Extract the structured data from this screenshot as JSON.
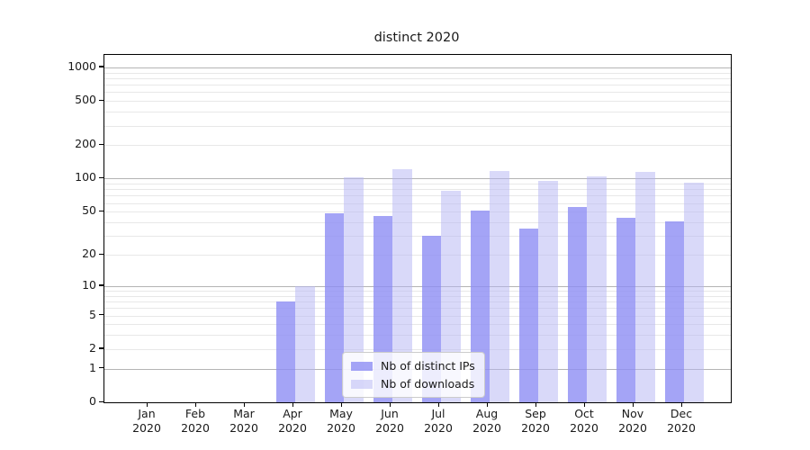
{
  "figure": {
    "background": "#ffffff"
  },
  "chart_data": {
    "type": "bar",
    "title": "distinct 2020",
    "categories": [
      "Jan 2020",
      "Feb 2020",
      "Mar 2020",
      "Apr 2020",
      "May 2020",
      "Jun 2020",
      "Jul 2020",
      "Aug 2020",
      "Sep 2020",
      "Oct 2020",
      "Nov 2020",
      "Dec 2020"
    ],
    "series": [
      {
        "name": "Nb of distinct IPs",
        "color": "#8d8df4cc",
        "solid_color": "#a4a4f6",
        "values": [
          0,
          0,
          0,
          7,
          48,
          46,
          30,
          51,
          35,
          55,
          44,
          41
        ]
      },
      {
        "name": "Nb of downloads",
        "color": "#b3b3f380",
        "solid_color": "#d9d9f9",
        "values": [
          0,
          0,
          0,
          10,
          102,
          122,
          78,
          117,
          95,
          105,
          116,
          92
        ]
      }
    ],
    "xlabel": "",
    "ylabel": "",
    "yscale": "log1p",
    "ylim": [
      0,
      1300
    ],
    "y_tick_labels": [
      "1000",
      "500",
      "200",
      "100",
      "50",
      "20",
      "10",
      "5",
      "2",
      "1",
      "0"
    ],
    "y_tick_values": [
      1000,
      500,
      200,
      100,
      50,
      20,
      10,
      5,
      2,
      1,
      0
    ],
    "grid": "both",
    "legend_position": "lower-center"
  },
  "colors": {
    "major_grid": "#b4b4b4",
    "minor_grid": "#e8e8e8",
    "spine": "#000000",
    "text": "#1a1a1a",
    "legend_border": "#cccccc",
    "legend_background": "#ffffffcc"
  }
}
